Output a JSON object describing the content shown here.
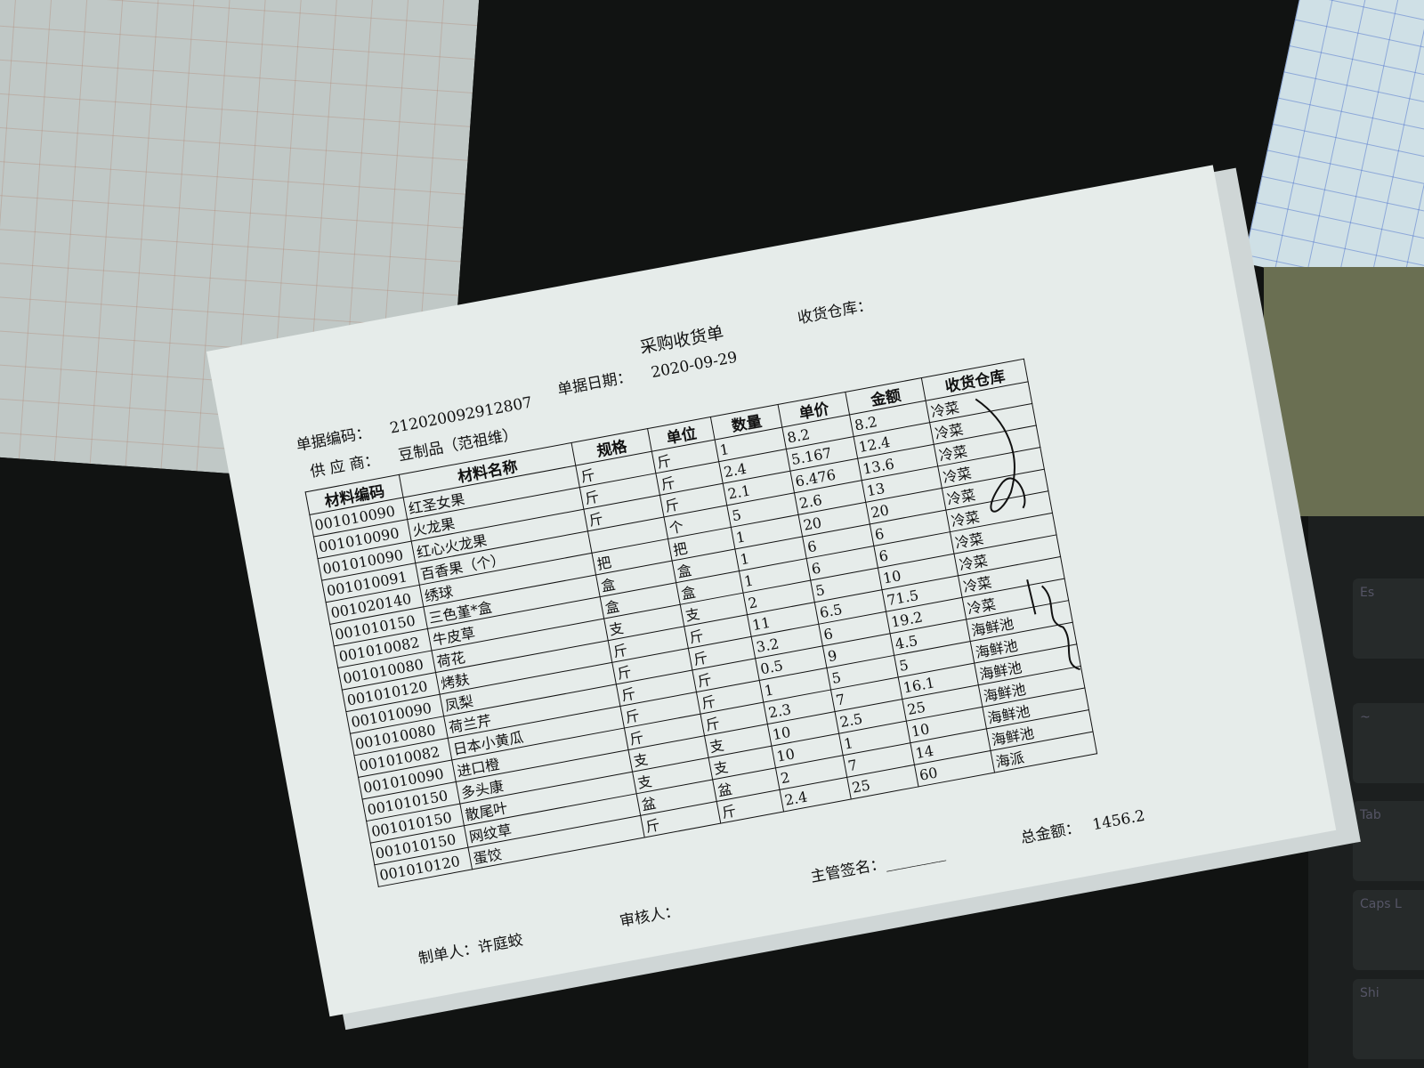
{
  "document": {
    "title": "采购收货单",
    "warehouse_label": "收货仓库：",
    "doc_no_label": "单据编码：",
    "doc_no": "212020092912807",
    "date_label": "单据日期：",
    "date": "2020-09-29",
    "supplier_label": "供 应 商：",
    "supplier": "豆制品（范祖维）"
  },
  "table": {
    "headers": [
      "材料编码",
      "材料名称",
      "规格",
      "单位",
      "数量",
      "单价",
      "金额",
      "收货仓库"
    ],
    "rows": [
      [
        "001010090",
        "红圣女果",
        "斤",
        "斤",
        "1",
        "8.2",
        "8.2",
        "冷菜"
      ],
      [
        "001010090",
        "火龙果",
        "斤",
        "斤",
        "2.4",
        "5.167",
        "12.4",
        "冷菜"
      ],
      [
        "001010090",
        "红心火龙果",
        "斤",
        "斤",
        "2.1",
        "6.476",
        "13.6",
        "冷菜"
      ],
      [
        "001010091",
        "百香果（个）",
        "",
        "个",
        "5",
        "2.6",
        "13",
        "冷菜"
      ],
      [
        "001020140",
        "绣球",
        "把",
        "把",
        "1",
        "20",
        "20",
        "冷菜"
      ],
      [
        "001010150",
        "三色堇*盒",
        "盒",
        "盒",
        "1",
        "6",
        "6",
        "冷菜"
      ],
      [
        "001010082",
        "牛皮草",
        "盒",
        "盒",
        "1",
        "6",
        "6",
        "冷菜"
      ],
      [
        "001010080",
        "荷花",
        "支",
        "支",
        "2",
        "5",
        "10",
        "冷菜"
      ],
      [
        "001010120",
        "烤麸",
        "斤",
        "斤",
        "11",
        "6.5",
        "71.5",
        "冷菜"
      ],
      [
        "001010090",
        "凤梨",
        "斤",
        "斤",
        "3.2",
        "6",
        "19.2",
        "冷菜"
      ],
      [
        "001010080",
        "荷兰芹",
        "斤",
        "斤",
        "0.5",
        "9",
        "4.5",
        "海鲜池"
      ],
      [
        "001010082",
        "日本小黄瓜",
        "斤",
        "斤",
        "1",
        "5",
        "5",
        "海鲜池"
      ],
      [
        "001010090",
        "进口橙",
        "斤",
        "斤",
        "2.3",
        "7",
        "16.1",
        "海鲜池"
      ],
      [
        "001010150",
        "多头康",
        "支",
        "支",
        "10",
        "2.5",
        "25",
        "海鲜池"
      ],
      [
        "001010150",
        "散尾叶",
        "支",
        "支",
        "10",
        "1",
        "10",
        "海鲜池"
      ],
      [
        "001010150",
        "网纹草",
        "盆",
        "盆",
        "2",
        "7",
        "14",
        "海鲜池"
      ],
      [
        "001010120",
        "蛋饺",
        "斤",
        "斤",
        "2.4",
        "25",
        "60",
        "海派"
      ]
    ]
  },
  "footer": {
    "maker_label": "制单人：",
    "maker": "许庭蛟",
    "reviewer_label": "审核人：",
    "supervisor_label": "主管签名：",
    "supervisor_blank": "________",
    "total_label": "总金额：",
    "total": "1456.2"
  },
  "keyboard_keys": [
    "Es",
    "~",
    "Tab",
    "Caps L",
    "Shi"
  ]
}
